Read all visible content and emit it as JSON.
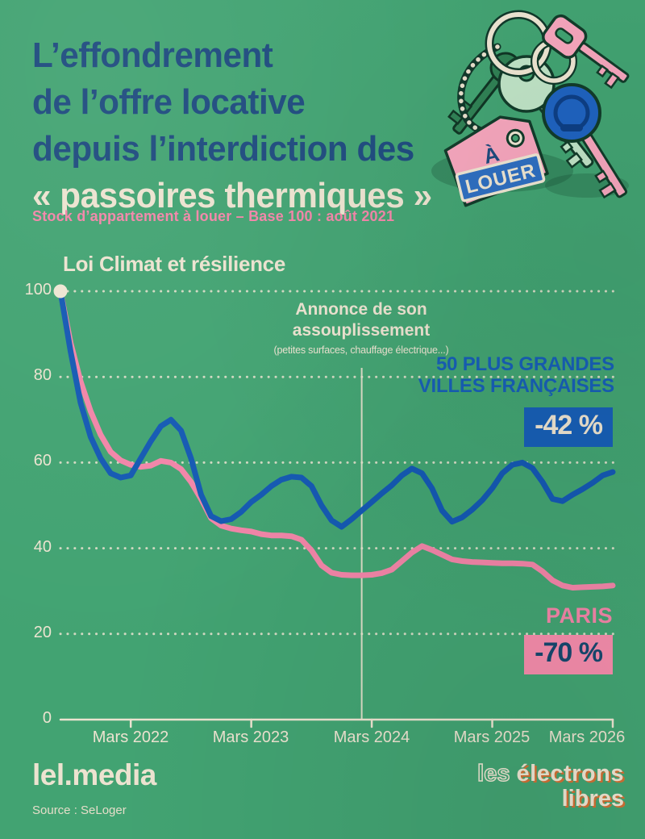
{
  "header": {
    "title_line1": "L’effondrement",
    "title_line2": "de l’offre locative",
    "title_line3": "depuis l’interdiction des",
    "title_line4": "« passoires thermiques »",
    "subtitle": "Stock d’appartement à louer – Base 100 : août 2021"
  },
  "illustration": {
    "name": "bunch-of-keys-with-rental-tag",
    "tag_word1": "À",
    "tag_word2": "LOUER"
  },
  "labels": {
    "climate_law": "Loi Climat et résilience",
    "announce_line1": "Annonce de son",
    "announce_line2": "assouplissement",
    "announce_sub": "(petites surfaces, chauffage électrique...)",
    "series_blue_line1": "50 PLUS GRANDES",
    "series_blue_line2": "VILLES FRANÇAISES",
    "series_blue_badge": "-42 %",
    "series_pink": "PARIS",
    "series_pink_badge": "-70 %"
  },
  "axis": {
    "yticks": [
      "100",
      "80",
      "60",
      "40",
      "20",
      "0"
    ],
    "xticks": [
      "Mars 2022",
      "Mars 2023",
      "Mars 2024",
      "Mars 2025",
      "Mars 2026"
    ]
  },
  "footer": {
    "brand": "lel.media",
    "source": "Source : SeLoger",
    "logo_les": "les",
    "logo_electrons": "électrons",
    "logo_libres": "libres"
  },
  "colors": {
    "background": "#42a372",
    "navy": "#1d4a7e",
    "cream": "#ece3d0",
    "pink": "#f285a8",
    "blue": "#1459b3",
    "badge_blue": "#175fb6",
    "badge_pink": "#f48cab",
    "orange": "#d96e31"
  },
  "chart_data": {
    "type": "line",
    "title": "Stock d’appartement à louer – Base 100 : août 2021",
    "x_axis": {
      "ticks": [
        {
          "label": "Mars 2022",
          "month": 7
        },
        {
          "label": "Mars 2023",
          "month": 19
        },
        {
          "label": "Mars 2024",
          "month": 31
        },
        {
          "label": "Mars 2025",
          "month": 43
        },
        {
          "label": "Mars 2026",
          "month": 55
        }
      ]
    },
    "y_axis": {
      "range": [
        0,
        100
      ],
      "ticks": [
        100,
        80,
        60,
        40,
        20,
        0
      ],
      "grid": "dotted"
    },
    "annotations": [
      {
        "label": "Loi Climat et résilience",
        "month": 0,
        "value": 100,
        "marker": "dot"
      },
      {
        "label": "Annonce de son assouplissement",
        "sublabel": "(petites surfaces, chauffage électrique...)",
        "month": 30,
        "marker": "vertical-line"
      }
    ],
    "series": [
      {
        "name": "50 plus grandes villes françaises",
        "color": "#1459b3",
        "change_label": "-42 %",
        "points": [
          [
            0,
            100
          ],
          [
            1,
            86
          ],
          [
            2,
            74
          ],
          [
            3,
            66
          ],
          [
            4,
            61
          ],
          [
            5,
            57.5
          ],
          [
            6,
            56.5
          ],
          [
            7,
            57
          ],
          [
            8,
            61
          ],
          [
            9,
            65
          ],
          [
            10,
            68.5
          ],
          [
            11,
            70
          ],
          [
            12,
            67.5
          ],
          [
            13,
            61
          ],
          [
            14,
            52.5
          ],
          [
            15,
            47.5
          ],
          [
            16,
            46.3
          ],
          [
            17,
            46.8
          ],
          [
            18,
            48.5
          ],
          [
            19,
            50.8
          ],
          [
            20,
            52.5
          ],
          [
            21,
            54.5
          ],
          [
            22,
            56
          ],
          [
            23,
            56.7
          ],
          [
            24,
            56.5
          ],
          [
            25,
            54.5
          ],
          [
            26,
            50
          ],
          [
            27,
            46.5
          ],
          [
            28,
            45
          ],
          [
            29,
            46.8
          ],
          [
            30,
            48.8
          ],
          [
            31,
            50.8
          ],
          [
            32,
            52.8
          ],
          [
            33,
            54.7
          ],
          [
            34,
            57
          ],
          [
            35,
            58.6
          ],
          [
            36,
            57.5
          ],
          [
            37,
            54
          ],
          [
            38,
            48.8
          ],
          [
            39,
            46.2
          ],
          [
            40,
            47.2
          ],
          [
            41,
            49
          ],
          [
            42,
            51.2
          ],
          [
            43,
            54
          ],
          [
            44,
            57.5
          ],
          [
            45,
            59.5
          ],
          [
            46,
            60
          ],
          [
            47,
            58.7
          ],
          [
            48,
            55.5
          ],
          [
            49,
            51.5
          ],
          [
            50,
            51
          ],
          [
            51,
            52.5
          ],
          [
            52,
            53.8
          ],
          [
            53,
            55.3
          ],
          [
            54,
            57
          ],
          [
            55,
            57.8
          ]
        ]
      },
      {
        "name": "Paris",
        "color": "#f285a8",
        "change_label": "-70 %",
        "points": [
          [
            0,
            100
          ],
          [
            1,
            88
          ],
          [
            2,
            79
          ],
          [
            3,
            72
          ],
          [
            4,
            66.5
          ],
          [
            5,
            62.5
          ],
          [
            6,
            60.5
          ],
          [
            7,
            59.5
          ],
          [
            8,
            59
          ],
          [
            9,
            59.3
          ],
          [
            10,
            60.4
          ],
          [
            11,
            60
          ],
          [
            12,
            58.5
          ],
          [
            13,
            55.5
          ],
          [
            14,
            51.5
          ],
          [
            15,
            47
          ],
          [
            16,
            45.3
          ],
          [
            17,
            44.6
          ],
          [
            18,
            44.2
          ],
          [
            19,
            43.9
          ],
          [
            20,
            43.3
          ],
          [
            21,
            43
          ],
          [
            22,
            43
          ],
          [
            23,
            42.8
          ],
          [
            24,
            42
          ],
          [
            25,
            39.5
          ],
          [
            26,
            36
          ],
          [
            27,
            34.3
          ],
          [
            28,
            33.8
          ],
          [
            29,
            33.7
          ],
          [
            30,
            33.7
          ],
          [
            31,
            33.8
          ],
          [
            32,
            34.2
          ],
          [
            33,
            35
          ],
          [
            34,
            37
          ],
          [
            35,
            39
          ],
          [
            36,
            40.5
          ],
          [
            37,
            39.6
          ],
          [
            38,
            38.5
          ],
          [
            39,
            37.4
          ],
          [
            40,
            37
          ],
          [
            41,
            36.8
          ],
          [
            42,
            36.7
          ],
          [
            43,
            36.6
          ],
          [
            44,
            36.5
          ],
          [
            45,
            36.5
          ],
          [
            46,
            36.4
          ],
          [
            47,
            36.2
          ],
          [
            48,
            34.6
          ],
          [
            49,
            32.5
          ],
          [
            50,
            31.3
          ],
          [
            51,
            30.8
          ],
          [
            52,
            30.9
          ],
          [
            53,
            31
          ],
          [
            54,
            31.1
          ],
          [
            55,
            31.3
          ]
        ]
      }
    ]
  }
}
